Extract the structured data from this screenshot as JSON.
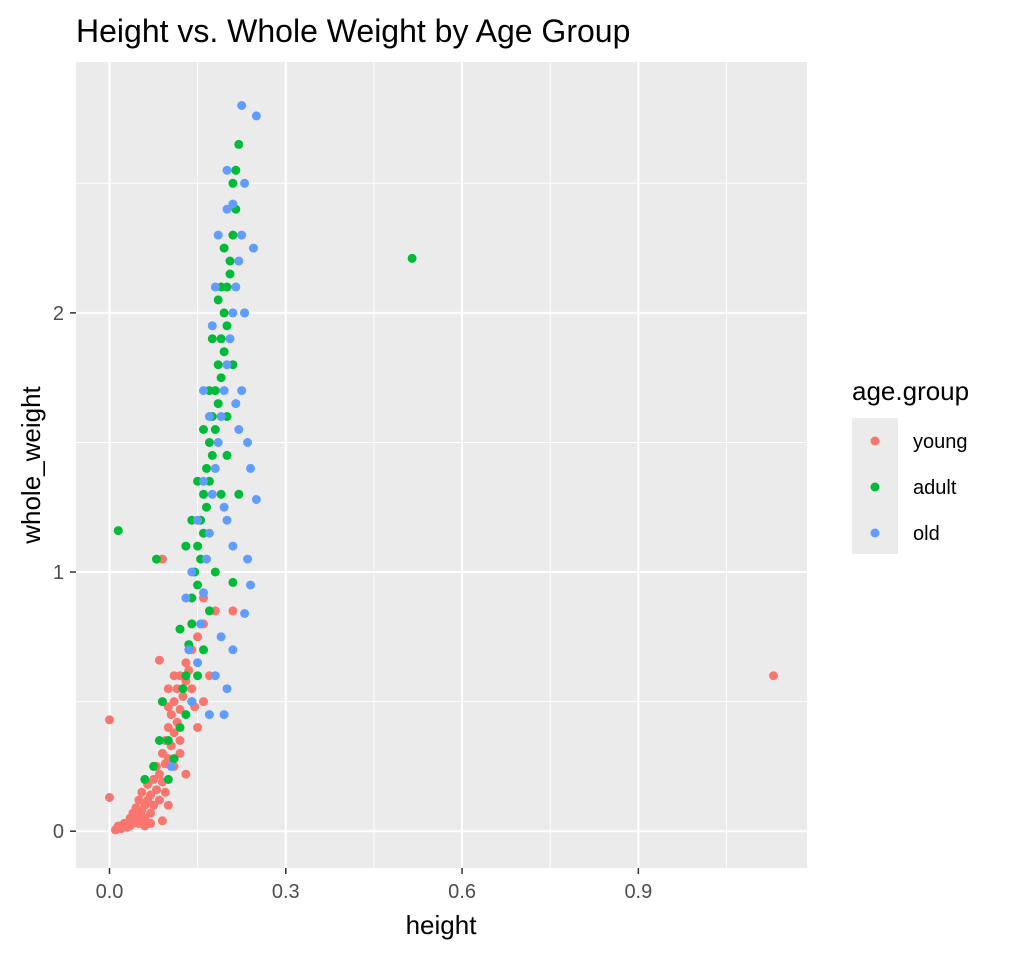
{
  "chart_data": {
    "type": "scatter",
    "title": "Height vs. Whole Weight by Age Group",
    "xlabel": "height",
    "ylabel": "whole_weight",
    "xlim": [
      -0.057,
      1.187
    ],
    "ylim": [
      -0.142,
      2.968
    ],
    "x_ticks": [
      0.0,
      0.3,
      0.6,
      0.9
    ],
    "x_tick_labels": [
      "0.0",
      "0.3",
      "0.6",
      "0.9"
    ],
    "y_ticks": [
      0,
      1,
      2
    ],
    "y_tick_labels": [
      "0",
      "1",
      "2"
    ],
    "grid": true,
    "legend": {
      "title": "age.group",
      "placement": "right"
    },
    "series": [
      {
        "name": "young",
        "color": "#F8766D"
      },
      {
        "name": "adult",
        "color": "#00BA38"
      },
      {
        "name": "old",
        "color": "#619CFF"
      }
    ],
    "points": {
      "young": [
        [
          0.0,
          0.43
        ],
        [
          0.0,
          0.13
        ],
        [
          0.01,
          0.005
        ],
        [
          0.015,
          0.02
        ],
        [
          0.02,
          0.01
        ],
        [
          0.025,
          0.03
        ],
        [
          0.03,
          0.015
        ],
        [
          0.035,
          0.05
        ],
        [
          0.035,
          0.02
        ],
        [
          0.04,
          0.07
        ],
        [
          0.04,
          0.03
        ],
        [
          0.045,
          0.09
        ],
        [
          0.045,
          0.05
        ],
        [
          0.05,
          0.12
        ],
        [
          0.05,
          0.06
        ],
        [
          0.055,
          0.08
        ],
        [
          0.055,
          0.15
        ],
        [
          0.06,
          0.1
        ],
        [
          0.06,
          0.05
        ],
        [
          0.065,
          0.18
        ],
        [
          0.065,
          0.12
        ],
        [
          0.07,
          0.07
        ],
        [
          0.07,
          0.14
        ],
        [
          0.075,
          0.2
        ],
        [
          0.075,
          0.1
        ],
        [
          0.08,
          0.16
        ],
        [
          0.08,
          0.25
        ],
        [
          0.085,
          0.22
        ],
        [
          0.085,
          0.12
        ],
        [
          0.09,
          0.3
        ],
        [
          0.09,
          0.19
        ],
        [
          0.095,
          0.26
        ],
        [
          0.095,
          0.35
        ],
        [
          0.1,
          0.28
        ],
        [
          0.1,
          0.4
        ],
        [
          0.105,
          0.33
        ],
        [
          0.105,
          0.45
        ],
        [
          0.11,
          0.38
        ],
        [
          0.11,
          0.5
        ],
        [
          0.115,
          0.42
        ],
        [
          0.115,
          0.55
        ],
        [
          0.12,
          0.47
        ],
        [
          0.12,
          0.6
        ],
        [
          0.125,
          0.52
        ],
        [
          0.13,
          0.58
        ],
        [
          0.13,
          0.65
        ],
        [
          0.135,
          0.62
        ],
        [
          0.14,
          0.55
        ],
        [
          0.14,
          0.7
        ],
        [
          0.145,
          0.48
        ],
        [
          0.15,
          0.4
        ],
        [
          0.15,
          0.75
        ],
        [
          0.16,
          0.5
        ],
        [
          0.16,
          0.8
        ],
        [
          0.17,
          0.6
        ],
        [
          0.085,
          0.66
        ],
        [
          0.09,
          1.05
        ],
        [
          0.1,
          0.55
        ],
        [
          0.12,
          0.3
        ],
        [
          0.13,
          0.22
        ],
        [
          0.09,
          0.04
        ],
        [
          0.1,
          0.1
        ],
        [
          0.07,
          0.03
        ],
        [
          0.06,
          0.02
        ],
        [
          0.05,
          0.03
        ],
        [
          0.11,
          0.25
        ],
        [
          0.12,
          0.35
        ],
        [
          0.1,
          0.48
        ],
        [
          0.11,
          0.6
        ],
        [
          0.095,
          0.15
        ],
        [
          0.21,
          0.85
        ],
        [
          0.18,
          0.85
        ],
        [
          0.14,
          0.9
        ],
        [
          0.16,
          0.9
        ],
        [
          1.13,
          0.6
        ]
      ],
      "adult": [
        [
          0.015,
          1.16
        ],
        [
          0.08,
          1.05
        ],
        [
          0.09,
          0.5
        ],
        [
          0.085,
          0.35
        ],
        [
          0.1,
          0.2
        ],
        [
          0.11,
          0.28
        ],
        [
          0.12,
          0.4
        ],
        [
          0.125,
          0.55
        ],
        [
          0.13,
          0.6
        ],
        [
          0.135,
          0.72
        ],
        [
          0.14,
          0.8
        ],
        [
          0.14,
          0.9
        ],
        [
          0.145,
          1.0
        ],
        [
          0.15,
          0.95
        ],
        [
          0.15,
          1.1
        ],
        [
          0.155,
          1.2
        ],
        [
          0.155,
          1.05
        ],
        [
          0.16,
          1.3
        ],
        [
          0.16,
          1.15
        ],
        [
          0.165,
          1.4
        ],
        [
          0.165,
          1.25
        ],
        [
          0.17,
          1.5
        ],
        [
          0.17,
          1.35
        ],
        [
          0.175,
          1.6
        ],
        [
          0.175,
          1.45
        ],
        [
          0.18,
          1.7
        ],
        [
          0.18,
          1.55
        ],
        [
          0.185,
          1.8
        ],
        [
          0.185,
          1.65
        ],
        [
          0.19,
          1.9
        ],
        [
          0.19,
          1.75
        ],
        [
          0.195,
          2.0
        ],
        [
          0.195,
          1.85
        ],
        [
          0.2,
          2.1
        ],
        [
          0.2,
          1.95
        ],
        [
          0.205,
          2.2
        ],
        [
          0.21,
          2.3
        ],
        [
          0.215,
          2.4
        ],
        [
          0.215,
          2.55
        ],
        [
          0.22,
          2.65
        ],
        [
          0.21,
          2.5
        ],
        [
          0.205,
          2.15
        ],
        [
          0.2,
          1.6
        ],
        [
          0.19,
          1.3
        ],
        [
          0.18,
          1.0
        ],
        [
          0.17,
          0.85
        ],
        [
          0.16,
          0.7
        ],
        [
          0.15,
          0.6
        ],
        [
          0.14,
          0.5
        ],
        [
          0.13,
          0.45
        ],
        [
          0.175,
          1.9
        ],
        [
          0.185,
          2.05
        ],
        [
          0.19,
          2.1
        ],
        [
          0.16,
          1.55
        ],
        [
          0.17,
          1.7
        ],
        [
          0.22,
          1.3
        ],
        [
          0.21,
          0.96
        ],
        [
          0.23,
          2.0
        ],
        [
          0.12,
          0.78
        ],
        [
          0.13,
          1.1
        ],
        [
          0.14,
          1.2
        ],
        [
          0.15,
          1.35
        ],
        [
          0.2,
          1.45
        ],
        [
          0.21,
          1.8
        ],
        [
          0.195,
          2.25
        ],
        [
          0.06,
          0.2
        ],
        [
          0.075,
          0.25
        ],
        [
          0.1,
          0.35
        ],
        [
          0.515,
          2.21
        ]
      ],
      "old": [
        [
          0.105,
          0.25
        ],
        [
          0.14,
          0.5
        ],
        [
          0.15,
          0.65
        ],
        [
          0.155,
          0.8
        ],
        [
          0.16,
          0.92
        ],
        [
          0.165,
          1.05
        ],
        [
          0.17,
          1.15
        ],
        [
          0.175,
          1.3
        ],
        [
          0.18,
          1.4
        ],
        [
          0.185,
          1.5
        ],
        [
          0.19,
          1.6
        ],
        [
          0.195,
          1.7
        ],
        [
          0.2,
          1.8
        ],
        [
          0.205,
          1.9
        ],
        [
          0.21,
          2.0
        ],
        [
          0.215,
          2.1
        ],
        [
          0.22,
          2.2
        ],
        [
          0.225,
          2.3
        ],
        [
          0.23,
          2.0
        ],
        [
          0.235,
          1.5
        ],
        [
          0.24,
          1.4
        ],
        [
          0.245,
          2.25
        ],
        [
          0.25,
          1.28
        ],
        [
          0.23,
          0.84
        ],
        [
          0.225,
          2.8
        ],
        [
          0.25,
          2.76
        ],
        [
          0.23,
          2.5
        ],
        [
          0.2,
          2.55
        ],
        [
          0.21,
          2.42
        ],
        [
          0.18,
          2.1
        ],
        [
          0.17,
          1.6
        ],
        [
          0.16,
          1.35
        ],
        [
          0.15,
          1.2
        ],
        [
          0.14,
          1.0
        ],
        [
          0.13,
          0.9
        ],
        [
          0.135,
          0.7
        ],
        [
          0.2,
          1.2
        ],
        [
          0.21,
          1.1
        ],
        [
          0.22,
          1.55
        ],
        [
          0.235,
          1.05
        ],
        [
          0.24,
          0.95
        ],
        [
          0.19,
          0.75
        ],
        [
          0.18,
          0.6
        ],
        [
          0.17,
          0.45
        ],
        [
          0.2,
          0.55
        ],
        [
          0.21,
          0.7
        ],
        [
          0.225,
          1.7
        ],
        [
          0.195,
          1.25
        ],
        [
          0.185,
          2.3
        ],
        [
          0.16,
          1.7
        ],
        [
          0.175,
          1.95
        ],
        [
          0.2,
          2.4
        ],
        [
          0.215,
          1.65
        ],
        [
          0.195,
          0.45
        ]
      ]
    }
  }
}
